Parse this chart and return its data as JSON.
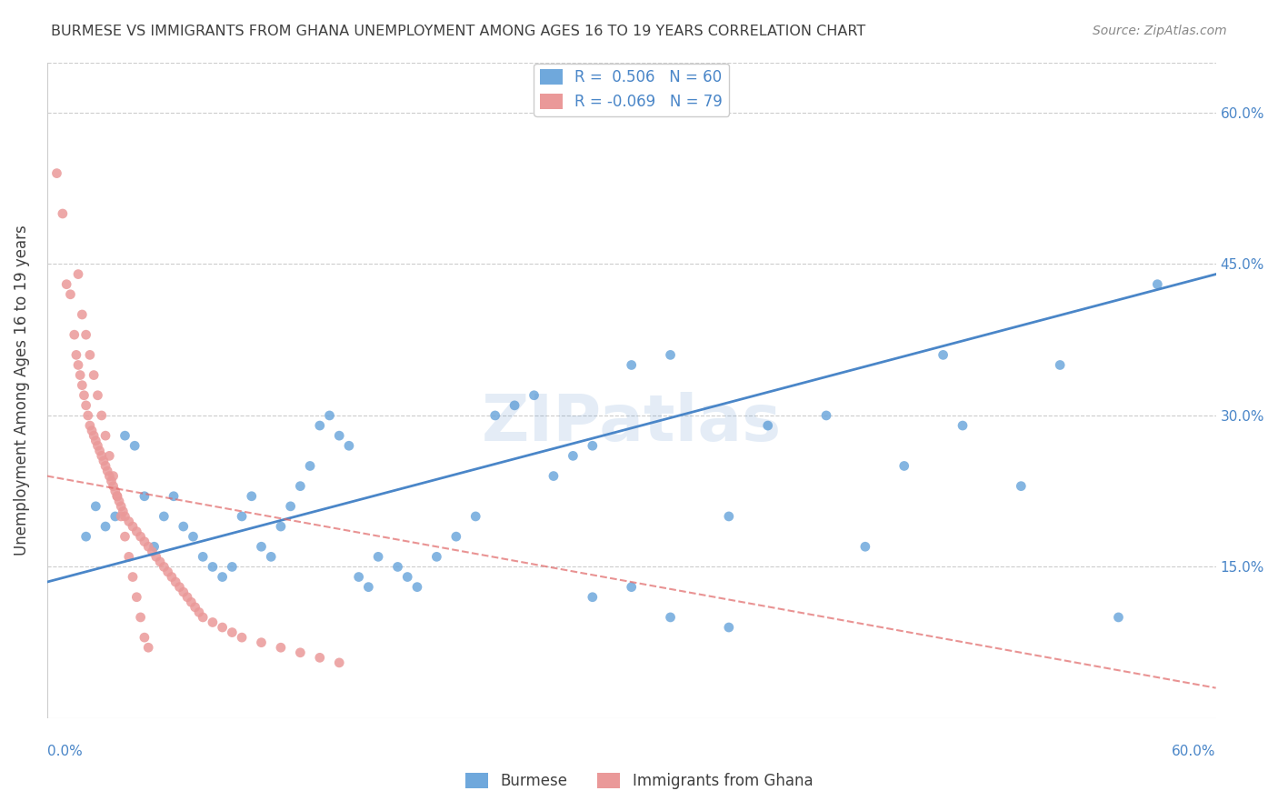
{
  "title": "BURMESE VS IMMIGRANTS FROM GHANA UNEMPLOYMENT AMONG AGES 16 TO 19 YEARS CORRELATION CHART",
  "source": "Source: ZipAtlas.com",
  "ylabel": "Unemployment Among Ages 16 to 19 years",
  "x_min": 0.0,
  "x_max": 0.6,
  "y_min": 0.0,
  "y_max": 0.65,
  "y_ticks": [
    0.15,
    0.3,
    0.45,
    0.6
  ],
  "y_tick_labels": [
    "15.0%",
    "30.0%",
    "45.0%",
    "60.0%"
  ],
  "watermark": "ZIPatlas",
  "legend_R1": "R =  0.506",
  "legend_N1": "N = 60",
  "legend_R2": "R = -0.069",
  "legend_N2": "N = 79",
  "blue_color": "#6fa8dc",
  "pink_color": "#ea9999",
  "blue_line_color": "#4a86c8",
  "pink_line_color": "#e06666",
  "text_color": "#4a86c8",
  "title_color": "#404040",
  "source_color": "#888888",
  "blue_scatter": [
    [
      0.02,
      0.18
    ],
    [
      0.025,
      0.21
    ],
    [
      0.03,
      0.19
    ],
    [
      0.035,
      0.2
    ],
    [
      0.04,
      0.28
    ],
    [
      0.045,
      0.27
    ],
    [
      0.05,
      0.22
    ],
    [
      0.055,
      0.17
    ],
    [
      0.06,
      0.2
    ],
    [
      0.065,
      0.22
    ],
    [
      0.07,
      0.19
    ],
    [
      0.075,
      0.18
    ],
    [
      0.08,
      0.16
    ],
    [
      0.085,
      0.15
    ],
    [
      0.09,
      0.14
    ],
    [
      0.095,
      0.15
    ],
    [
      0.1,
      0.2
    ],
    [
      0.105,
      0.22
    ],
    [
      0.11,
      0.17
    ],
    [
      0.115,
      0.16
    ],
    [
      0.12,
      0.19
    ],
    [
      0.125,
      0.21
    ],
    [
      0.13,
      0.23
    ],
    [
      0.135,
      0.25
    ],
    [
      0.14,
      0.29
    ],
    [
      0.145,
      0.3
    ],
    [
      0.15,
      0.28
    ],
    [
      0.155,
      0.27
    ],
    [
      0.16,
      0.14
    ],
    [
      0.165,
      0.13
    ],
    [
      0.17,
      0.16
    ],
    [
      0.18,
      0.15
    ],
    [
      0.185,
      0.14
    ],
    [
      0.19,
      0.13
    ],
    [
      0.2,
      0.16
    ],
    [
      0.21,
      0.18
    ],
    [
      0.22,
      0.2
    ],
    [
      0.23,
      0.3
    ],
    [
      0.24,
      0.31
    ],
    [
      0.25,
      0.32
    ],
    [
      0.26,
      0.24
    ],
    [
      0.27,
      0.26
    ],
    [
      0.28,
      0.27
    ],
    [
      0.3,
      0.35
    ],
    [
      0.32,
      0.36
    ],
    [
      0.35,
      0.2
    ],
    [
      0.37,
      0.29
    ],
    [
      0.4,
      0.3
    ],
    [
      0.42,
      0.17
    ],
    [
      0.44,
      0.25
    ],
    [
      0.46,
      0.36
    ],
    [
      0.47,
      0.29
    ],
    [
      0.5,
      0.23
    ],
    [
      0.52,
      0.35
    ],
    [
      0.55,
      0.1
    ],
    [
      0.57,
      0.43
    ],
    [
      0.28,
      0.12
    ],
    [
      0.3,
      0.13
    ],
    [
      0.32,
      0.1
    ],
    [
      0.35,
      0.09
    ]
  ],
  "pink_scatter": [
    [
      0.005,
      0.54
    ],
    [
      0.008,
      0.5
    ],
    [
      0.01,
      0.43
    ],
    [
      0.012,
      0.42
    ],
    [
      0.014,
      0.38
    ],
    [
      0.015,
      0.36
    ],
    [
      0.016,
      0.35
    ],
    [
      0.017,
      0.34
    ],
    [
      0.018,
      0.33
    ],
    [
      0.019,
      0.32
    ],
    [
      0.02,
      0.31
    ],
    [
      0.021,
      0.3
    ],
    [
      0.022,
      0.29
    ],
    [
      0.023,
      0.285
    ],
    [
      0.024,
      0.28
    ],
    [
      0.025,
      0.275
    ],
    [
      0.026,
      0.27
    ],
    [
      0.027,
      0.265
    ],
    [
      0.028,
      0.26
    ],
    [
      0.029,
      0.255
    ],
    [
      0.03,
      0.25
    ],
    [
      0.031,
      0.245
    ],
    [
      0.032,
      0.24
    ],
    [
      0.033,
      0.235
    ],
    [
      0.034,
      0.23
    ],
    [
      0.035,
      0.225
    ],
    [
      0.036,
      0.22
    ],
    [
      0.037,
      0.215
    ],
    [
      0.038,
      0.21
    ],
    [
      0.039,
      0.205
    ],
    [
      0.04,
      0.2
    ],
    [
      0.042,
      0.195
    ],
    [
      0.044,
      0.19
    ],
    [
      0.046,
      0.185
    ],
    [
      0.048,
      0.18
    ],
    [
      0.05,
      0.175
    ],
    [
      0.052,
      0.17
    ],
    [
      0.054,
      0.165
    ],
    [
      0.056,
      0.16
    ],
    [
      0.058,
      0.155
    ],
    [
      0.06,
      0.15
    ],
    [
      0.062,
      0.145
    ],
    [
      0.064,
      0.14
    ],
    [
      0.066,
      0.135
    ],
    [
      0.068,
      0.13
    ],
    [
      0.07,
      0.125
    ],
    [
      0.072,
      0.12
    ],
    [
      0.074,
      0.115
    ],
    [
      0.076,
      0.11
    ],
    [
      0.078,
      0.105
    ],
    [
      0.08,
      0.1
    ],
    [
      0.085,
      0.095
    ],
    [
      0.09,
      0.09
    ],
    [
      0.095,
      0.085
    ],
    [
      0.1,
      0.08
    ],
    [
      0.11,
      0.075
    ],
    [
      0.12,
      0.07
    ],
    [
      0.13,
      0.065
    ],
    [
      0.14,
      0.06
    ],
    [
      0.15,
      0.055
    ],
    [
      0.016,
      0.44
    ],
    [
      0.018,
      0.4
    ],
    [
      0.02,
      0.38
    ],
    [
      0.022,
      0.36
    ],
    [
      0.024,
      0.34
    ],
    [
      0.026,
      0.32
    ],
    [
      0.028,
      0.3
    ],
    [
      0.03,
      0.28
    ],
    [
      0.032,
      0.26
    ],
    [
      0.034,
      0.24
    ],
    [
      0.036,
      0.22
    ],
    [
      0.038,
      0.2
    ],
    [
      0.04,
      0.18
    ],
    [
      0.042,
      0.16
    ],
    [
      0.044,
      0.14
    ],
    [
      0.046,
      0.12
    ],
    [
      0.048,
      0.1
    ],
    [
      0.05,
      0.08
    ],
    [
      0.052,
      0.07
    ]
  ],
  "blue_trendline": [
    [
      0.0,
      0.135
    ],
    [
      0.6,
      0.44
    ]
  ],
  "pink_trendline": [
    [
      0.0,
      0.24
    ],
    [
      0.6,
      0.03
    ]
  ]
}
